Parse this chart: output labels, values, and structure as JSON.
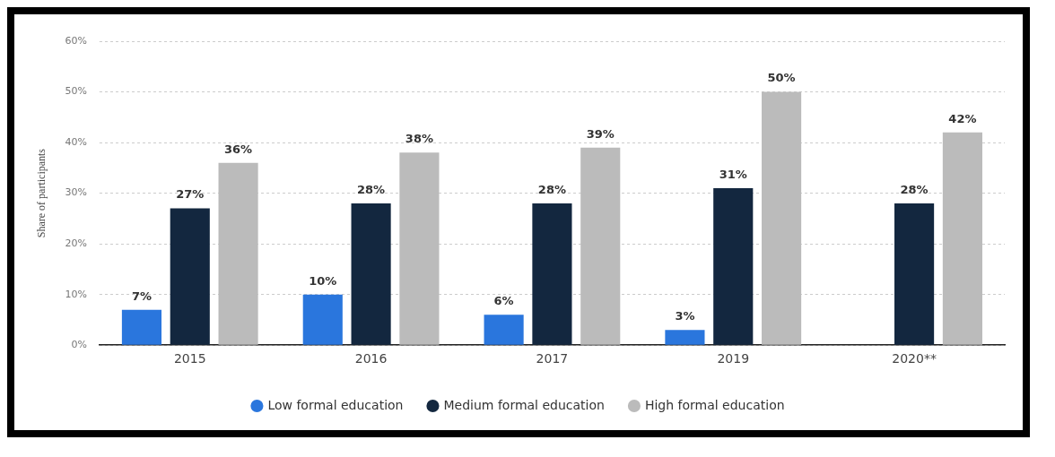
{
  "chart_data": {
    "type": "bar",
    "ylabel": "Share of participants",
    "categories": [
      "2015",
      "2016",
      "2017",
      "2019",
      "2020**"
    ],
    "series": [
      {
        "name": "Low formal education",
        "color": "#2a76dd",
        "values": [
          7,
          10,
          6,
          3,
          null
        ],
        "value_labels": [
          "7%",
          "10%",
          "6%",
          "3%",
          null
        ]
      },
      {
        "name": "Medium formal education",
        "color": "#13273f",
        "values": [
          27,
          28,
          28,
          31,
          28
        ],
        "value_labels": [
          "27%",
          "28%",
          "28%",
          "31%",
          "28%"
        ]
      },
      {
        "name": "High formal education",
        "color": "#bbbbbb",
        "values": [
          36,
          38,
          39,
          50,
          42
        ],
        "value_labels": [
          "36%",
          "38%",
          "39%",
          "50%",
          "42%"
        ]
      }
    ],
    "ylim": [
      0,
      60
    ],
    "yticks": [
      {
        "value": 0,
        "label": "0%"
      },
      {
        "value": 10,
        "label": "10%"
      },
      {
        "value": 20,
        "label": "20%"
      },
      {
        "value": 30,
        "label": "30%"
      },
      {
        "value": 40,
        "label": "40%"
      },
      {
        "value": 50,
        "label": "50%"
      },
      {
        "value": 60,
        "label": "60%"
      }
    ],
    "grid": "y",
    "legend": "bottom"
  }
}
